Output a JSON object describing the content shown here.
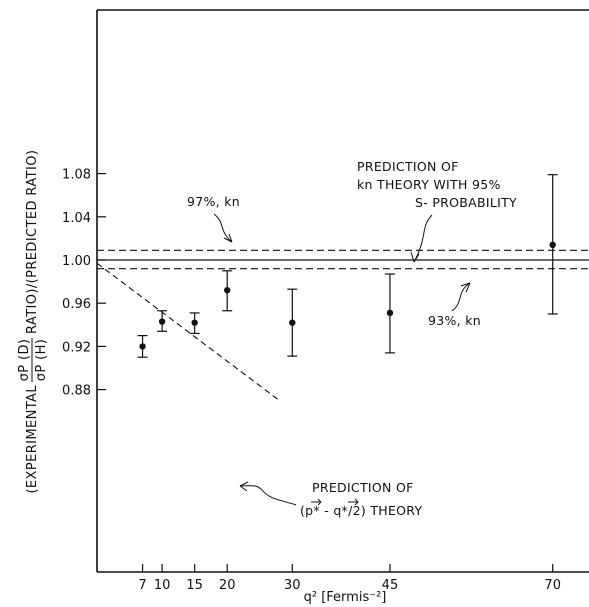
{
  "chart_data": {
    "type": "scatter",
    "xlabel": "q² [Fermis⁻²]",
    "ylabel": "(EXPERIMENTAL σP(D)/σP(H) RATIO)/(PREDICTED RATIO)",
    "ylabel_parts": {
      "left": "(EXPERIMENTAL",
      "num": "σP (D)",
      "den": "σP (H)",
      "right": "RATIO)/(PREDICTED RATIO)"
    },
    "xlim": [
      0,
      77
    ],
    "ylim": [
      0.86,
      1.12
    ],
    "x_ticks": [
      7,
      10,
      15,
      20,
      30,
      45,
      70
    ],
    "y_ticks": [
      0.88,
      0.92,
      0.96,
      1.0,
      1.04,
      1.08
    ],
    "y_tick_labels": [
      "0.88",
      "0.92",
      "0.96",
      "1.00",
      "1.04",
      "1.08"
    ],
    "grid": false,
    "series": [
      {
        "points": [
          {
            "x": 7,
            "y": 0.92,
            "ylow": 0.91,
            "yhigh": 0.93
          },
          {
            "x": 10,
            "y": 0.943,
            "ylow": 0.934,
            "yhigh": 0.953
          },
          {
            "x": 15,
            "y": 0.942,
            "ylow": 0.932,
            "yhigh": 0.951
          },
          {
            "x": 20,
            "y": 0.972,
            "ylow": 0.953,
            "yhigh": 0.99
          },
          {
            "x": 30,
            "y": 0.942,
            "ylow": 0.911,
            "yhigh": 0.973
          },
          {
            "x": 45,
            "y": 0.951,
            "ylow": 0.914,
            "yhigh": 0.987
          },
          {
            "x": 70,
            "y": 1.014,
            "ylow": 0.95,
            "yhigh": 1.079
          }
        ]
      }
    ],
    "reference_lines": [
      {
        "y": 1.0,
        "style": "solid"
      },
      {
        "y": 1.009,
        "style": "dashed"
      },
      {
        "y": 0.992,
        "style": "dashed"
      }
    ],
    "theory_line": {
      "x1": 0,
      "y1": 0.997,
      "x2": 28,
      "y2": 0.87,
      "style": "dashed"
    },
    "annotations": {
      "prediction_line1": "PREDICTION OF",
      "prediction_line2": "kn THEORY WITH 95%",
      "prediction_line3": "S- PROBABILITY",
      "upper_label": "97%, kn",
      "lower_label": "93%, kn",
      "theory_line1": "PREDICTION OF",
      "theory_line2": "(p* - q*/2) THEORY"
    }
  }
}
